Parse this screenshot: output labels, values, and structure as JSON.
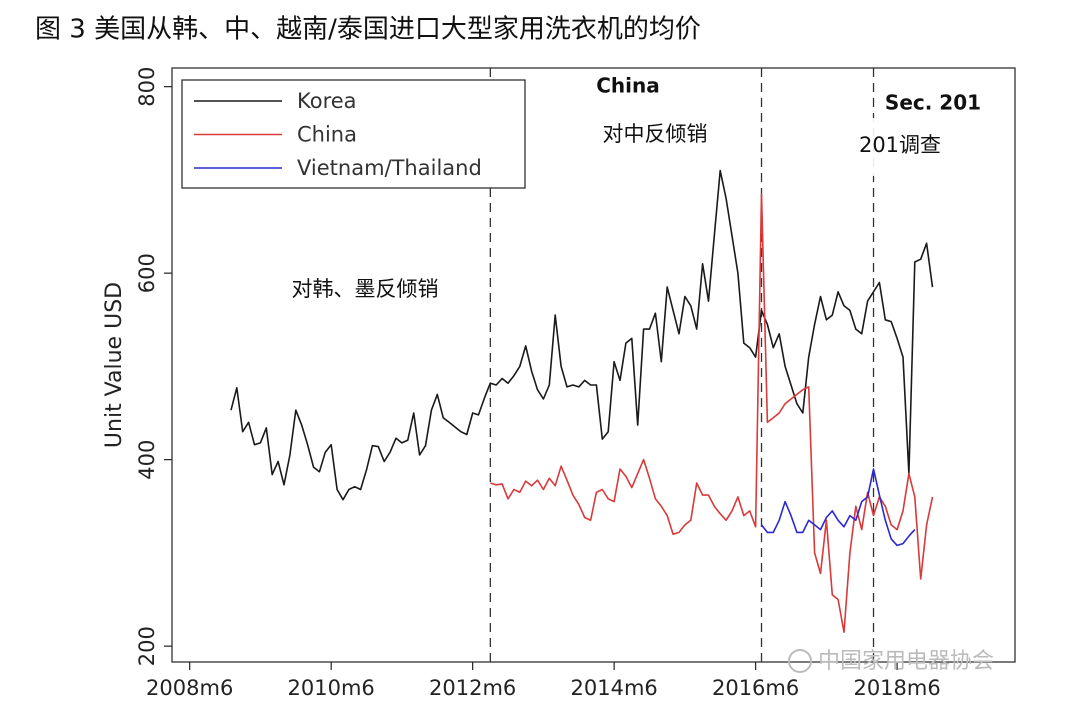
{
  "title": "图 3   美国从韩、中、越南/泰国进口大型家用洗衣机的均价",
  "watermark": "中国家用电器协会",
  "chart_data": {
    "type": "line",
    "ylabel": "Unit Value USD",
    "ylim": [
      183,
      820
    ],
    "yticks": [
      200,
      400,
      600,
      800
    ],
    "xlim": [
      "2008m3",
      "2020m2"
    ],
    "xticks": [
      "2008m6",
      "2010m6",
      "2012m6",
      "2014m6",
      "2016m6",
      "2018m6"
    ],
    "vlines": [
      "2012m9",
      "2016m7",
      "2018m2"
    ],
    "annotations": [
      "China",
      "Sec. 201",
      "对中反倾销",
      "201调查",
      "对韩、墨反倾销"
    ],
    "legend": "top-left",
    "x": [
      "2009m1",
      "2009m2",
      "2009m3",
      "2009m4",
      "2009m5",
      "2009m6",
      "2009m7",
      "2009m8",
      "2009m9",
      "2009m10",
      "2009m11",
      "2009m12",
      "2010m1",
      "2010m2",
      "2010m3",
      "2010m4",
      "2010m5",
      "2010m6",
      "2010m7",
      "2010m8",
      "2010m9",
      "2010m10",
      "2010m11",
      "2010m12",
      "2011m1",
      "2011m2",
      "2011m3",
      "2011m4",
      "2011m5",
      "2011m6",
      "2011m7",
      "2011m8",
      "2011m9",
      "2011m10",
      "2011m11",
      "2011m12",
      "2012m1",
      "2012m2",
      "2012m3",
      "2012m4",
      "2012m5",
      "2012m6",
      "2012m7",
      "2012m8",
      "2012m9",
      "2012m10",
      "2012m11",
      "2012m12",
      "2013m1",
      "2013m2",
      "2013m3",
      "2013m4",
      "2013m5",
      "2013m6",
      "2013m7",
      "2013m8",
      "2013m9",
      "2013m10",
      "2013m11",
      "2013m12",
      "2014m1",
      "2014m2",
      "2014m3",
      "2014m4",
      "2014m5",
      "2014m6",
      "2014m7",
      "2014m8",
      "2014m9",
      "2014m10",
      "2014m11",
      "2014m12",
      "2015m1",
      "2015m2",
      "2015m3",
      "2015m4",
      "2015m5",
      "2015m6",
      "2015m7",
      "2015m8",
      "2015m9",
      "2015m10",
      "2015m11",
      "2015m12",
      "2016m1",
      "2016m2",
      "2016m3",
      "2016m4",
      "2016m5",
      "2016m6",
      "2016m7",
      "2016m8",
      "2016m9",
      "2016m10",
      "2016m11",
      "2016m12",
      "2017m1",
      "2017m2",
      "2017m3",
      "2017m4",
      "2017m5",
      "2017m6",
      "2017m7",
      "2017m8",
      "2017m9",
      "2017m10",
      "2017m11",
      "2017m12",
      "2018m1",
      "2018m2",
      "2018m3",
      "2018m4",
      "2018m5",
      "2018m6",
      "2018m7",
      "2018m8",
      "2018m9",
      "2018m10",
      "2018m11",
      "2018m12"
    ],
    "series": [
      {
        "name": "Korea",
        "color": "#1a1a1a",
        "values": [
          453,
          477,
          430,
          440,
          416,
          418,
          434,
          384,
          398,
          373,
          405,
          453,
          437,
          416,
          392,
          387,
          408,
          416,
          368,
          357,
          368,
          371,
          368,
          389,
          415,
          414,
          398,
          408,
          423,
          418,
          421,
          450,
          405,
          415,
          453,
          470,
          445,
          440,
          435,
          430,
          427,
          450,
          448,
          466,
          482,
          480,
          487,
          482,
          490,
          500,
          522,
          495,
          475,
          465,
          480,
          555,
          500,
          478,
          480,
          478,
          485,
          480,
          480,
          422,
          430,
          505,
          485,
          525,
          530,
          437,
          540,
          540,
          557,
          505,
          585,
          560,
          535,
          575,
          565,
          540,
          610,
          570,
          640,
          710,
          680,
          640,
          600,
          525,
          520,
          510,
          560,
          545,
          520,
          535,
          500,
          480,
          460,
          450,
          510,
          545,
          575,
          550,
          555,
          580,
          565,
          560,
          540,
          535,
          570,
          580,
          590,
          550,
          548,
          530,
          510,
          385,
          612,
          615,
          632,
          585
        ]
      },
      {
        "name": "China",
        "color": "#d93a3a",
        "values": [
          null,
          null,
          null,
          null,
          null,
          null,
          null,
          null,
          null,
          null,
          null,
          null,
          null,
          null,
          null,
          null,
          null,
          null,
          null,
          null,
          null,
          null,
          null,
          null,
          null,
          null,
          null,
          null,
          null,
          null,
          null,
          null,
          null,
          null,
          null,
          null,
          null,
          null,
          null,
          null,
          null,
          null,
          null,
          null,
          375,
          373,
          374,
          358,
          368,
          365,
          377,
          372,
          378,
          368,
          380,
          372,
          393,
          378,
          362,
          352,
          338,
          335,
          365,
          368,
          358,
          355,
          390,
          382,
          370,
          385,
          400,
          380,
          358,
          350,
          340,
          320,
          322,
          330,
          335,
          375,
          362,
          362,
          350,
          342,
          335,
          345,
          360,
          340,
          345,
          328,
          685,
          440,
          445,
          450,
          460,
          465,
          470,
          475,
          478,
          300,
          278,
          335,
          255,
          250,
          215,
          300,
          350,
          325,
          365,
          340,
          360,
          350,
          330,
          325,
          345,
          385,
          360,
          272,
          330,
          360
        ]
      },
      {
        "name": "Vietnam/Thailand",
        "color": "#2a2ad0",
        "values": [
          null,
          null,
          null,
          null,
          null,
          null,
          null,
          null,
          null,
          null,
          null,
          null,
          null,
          null,
          null,
          null,
          null,
          null,
          null,
          null,
          null,
          null,
          null,
          null,
          null,
          null,
          null,
          null,
          null,
          null,
          null,
          null,
          null,
          null,
          null,
          null,
          null,
          null,
          null,
          null,
          null,
          null,
          null,
          null,
          null,
          null,
          null,
          null,
          null,
          null,
          null,
          null,
          null,
          null,
          null,
          null,
          null,
          null,
          null,
          null,
          null,
          null,
          null,
          null,
          null,
          null,
          null,
          null,
          null,
          null,
          null,
          null,
          null,
          null,
          null,
          null,
          null,
          null,
          null,
          null,
          null,
          null,
          null,
          null,
          null,
          null,
          null,
          null,
          null,
          null,
          330,
          322,
          322,
          335,
          355,
          340,
          322,
          322,
          335,
          330,
          325,
          338,
          345,
          335,
          328,
          340,
          335,
          355,
          360,
          390,
          362,
          335,
          315,
          308,
          310,
          318,
          325,
          null,
          null,
          null
        ]
      }
    ]
  }
}
